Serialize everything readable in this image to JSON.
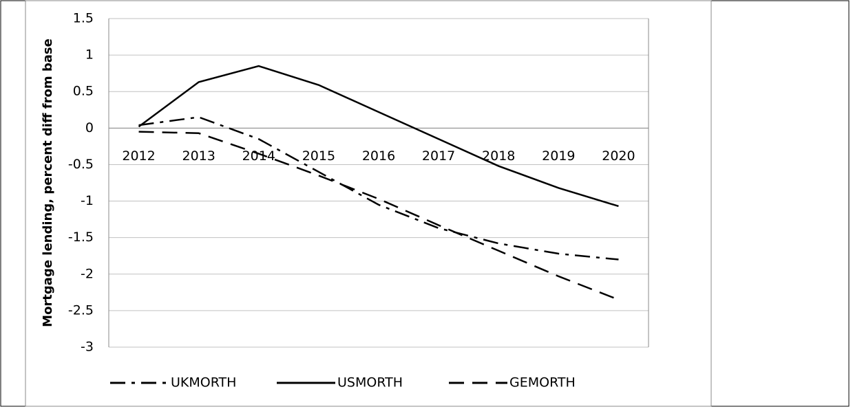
{
  "chart_data": {
    "type": "line",
    "y_label": "Mortgage lending, percent diff from base",
    "categories": [
      "2012",
      "2013",
      "2014",
      "2015",
      "2016",
      "2017",
      "2018",
      "2019",
      "2020"
    ],
    "series": [
      {
        "name": "UKMORTH",
        "color": "#000000",
        "dash": "dash-dot",
        "values": [
          0.04,
          0.15,
          -0.15,
          -0.6,
          -1.05,
          -1.37,
          -1.58,
          -1.72,
          -1.8
        ]
      },
      {
        "name": "USMORTH",
        "color": "#000000",
        "dash": "solid",
        "values": [
          0.02,
          0.63,
          0.85,
          0.59,
          0.22,
          -0.15,
          -0.52,
          -0.82,
          -1.07
        ]
      },
      {
        "name": "GEMORTH",
        "color": "#000000",
        "dash": "dashed",
        "values": [
          -0.05,
          -0.07,
          -0.35,
          -0.65,
          -0.97,
          -1.33,
          -1.68,
          -2.03,
          -2.35
        ]
      }
    ],
    "ylim": [
      -3,
      1.5
    ],
    "yticks": [
      -3,
      -2.5,
      -2,
      -1.5,
      -1,
      -0.5,
      0,
      0.5,
      1,
      1.5
    ],
    "grid": true
  }
}
